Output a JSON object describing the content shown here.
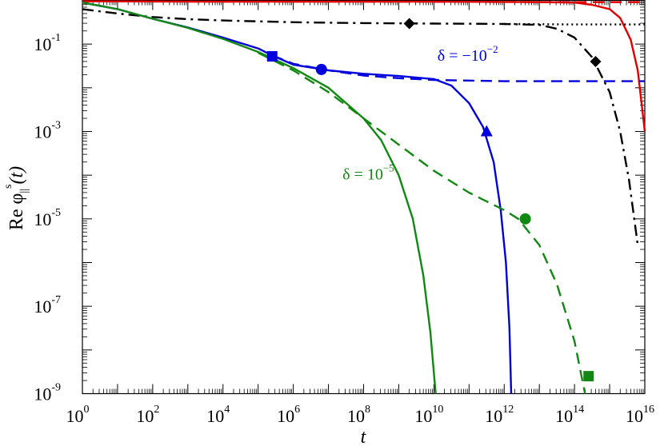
{
  "chart_data": {
    "type": "line",
    "xlabel": "t",
    "ylabel": {
      "prefix": "Re ",
      "symbol": "φ",
      "sub": "||",
      "sup": "s",
      "suffix": "(t)"
    },
    "xscale": "log",
    "yscale": "log",
    "xlim": [
      1,
      1e+16
    ],
    "ylim": [
      1e-09,
      1
    ],
    "x_ticks": [
      {
        "base": "10",
        "exp": "0"
      },
      {
        "base": "10",
        "exp": "2"
      },
      {
        "base": "10",
        "exp": "4"
      },
      {
        "base": "10",
        "exp": "6"
      },
      {
        "base": "10",
        "exp": "8"
      },
      {
        "base": "10",
        "exp": "10"
      },
      {
        "base": "10",
        "exp": "12"
      },
      {
        "base": "10",
        "exp": "14"
      },
      {
        "base": "10",
        "exp": "16"
      }
    ],
    "y_ticks": [
      {
        "base": "10",
        "exp": "-9"
      },
      {
        "base": "10",
        "exp": "-7"
      },
      {
        "base": "10",
        "exp": "-5"
      },
      {
        "base": "10",
        "exp": "-3"
      },
      {
        "base": "10",
        "exp": "-1"
      }
    ],
    "annotations": [
      {
        "text": "δ = −10",
        "exp": "−2",
        "color": "#0000dd",
        "at_log": [
          10.1,
          -1.38
        ]
      },
      {
        "text": "δ = 10",
        "exp": "−5",
        "color": "#118811",
        "at_log": [
          7.4,
          -4.1
        ]
      }
    ],
    "series": [
      {
        "color": "#e00000",
        "style": "solid",
        "points": [
          [
            0,
            -0.02
          ],
          [
            2,
            -0.025
          ],
          [
            4,
            -0.03
          ],
          [
            6,
            -0.03
          ],
          [
            8,
            -0.03
          ],
          [
            10,
            -0.03
          ],
          [
            12,
            -0.035
          ],
          [
            13,
            -0.04
          ],
          [
            14,
            -0.05
          ],
          [
            14.5,
            -0.1
          ],
          [
            15,
            -0.2
          ],
          [
            15.3,
            -0.4
          ],
          [
            15.6,
            -0.9
          ],
          [
            15.8,
            -1.6
          ],
          [
            15.9,
            -2.3
          ],
          [
            16,
            -3
          ]
        ]
      },
      {
        "color": "#e00000",
        "style": "dashed",
        "points": [
          [
            0,
            -0.02
          ],
          [
            4,
            -0.03
          ],
          [
            8,
            -0.03
          ],
          [
            12,
            -0.035
          ],
          [
            14,
            -0.04
          ],
          [
            16,
            -0.04
          ]
        ]
      },
      {
        "color": "#000000",
        "style": "dashdot",
        "points": [
          [
            0,
            -0.2
          ],
          [
            1,
            -0.3
          ],
          [
            2,
            -0.38
          ],
          [
            3,
            -0.43
          ],
          [
            4,
            -0.46
          ],
          [
            5,
            -0.48
          ],
          [
            6,
            -0.5
          ],
          [
            7,
            -0.51
          ],
          [
            8,
            -0.52
          ],
          [
            9,
            -0.525
          ],
          [
            10,
            -0.53
          ],
          [
            11,
            -0.535
          ],
          [
            12,
            -0.54
          ],
          [
            13,
            -0.56
          ],
          [
            13.5,
            -0.65
          ],
          [
            14,
            -0.85
          ],
          [
            14.5,
            -1.3
          ],
          [
            15,
            -2.1
          ],
          [
            15.3,
            -3
          ],
          [
            15.55,
            -4.1
          ],
          [
            15.7,
            -5
          ],
          [
            15.8,
            -5.6
          ]
        ]
      },
      {
        "color": "#000000",
        "style": "dotted",
        "points": [
          [
            12,
            -0.54
          ],
          [
            13,
            -0.545
          ],
          [
            14,
            -0.55
          ],
          [
            15,
            -0.55
          ],
          [
            16,
            -0.55
          ]
        ]
      },
      {
        "color": "#0000dd",
        "style": "solid",
        "points": [
          [
            0,
            -0.05
          ],
          [
            1,
            -0.2
          ],
          [
            2,
            -0.42
          ],
          [
            3,
            -0.62
          ],
          [
            4,
            -0.85
          ],
          [
            5,
            -1.1
          ],
          [
            5.4,
            -1.26
          ],
          [
            6,
            -1.47
          ],
          [
            7,
            -1.6
          ],
          [
            8,
            -1.68
          ],
          [
            9,
            -1.73
          ],
          [
            10,
            -1.8
          ],
          [
            10.5,
            -1.95
          ],
          [
            11,
            -2.35
          ],
          [
            11.4,
            -2.9
          ],
          [
            11.7,
            -3.7
          ],
          [
            11.9,
            -4.8
          ],
          [
            12.05,
            -6
          ],
          [
            12.15,
            -7.5
          ],
          [
            12.2,
            -9
          ]
        ]
      },
      {
        "color": "#0000dd",
        "style": "dashed",
        "points": [
          [
            5.4,
            -1.26
          ],
          [
            6,
            -1.45
          ],
          [
            7,
            -1.6
          ],
          [
            8,
            -1.72
          ],
          [
            9,
            -1.78
          ],
          [
            10,
            -1.82
          ],
          [
            12,
            -1.85
          ],
          [
            14,
            -1.85
          ],
          [
            16,
            -1.85
          ]
        ]
      },
      {
        "color": "#118811",
        "style": "solid",
        "points": [
          [
            0,
            -0.05
          ],
          [
            1,
            -0.2
          ],
          [
            2,
            -0.42
          ],
          [
            3,
            -0.63
          ],
          [
            4,
            -0.88
          ],
          [
            5,
            -1.18
          ],
          [
            6,
            -1.55
          ],
          [
            7,
            -2
          ],
          [
            8,
            -2.7
          ],
          [
            8.5,
            -3.2
          ],
          [
            9,
            -4
          ],
          [
            9.4,
            -5
          ],
          [
            9.7,
            -6.3
          ],
          [
            9.9,
            -7.6
          ],
          [
            10.05,
            -9
          ]
        ]
      },
      {
        "color": "#118811",
        "style": "dashed",
        "points": [
          [
            5,
            -1.2
          ],
          [
            6,
            -1.6
          ],
          [
            7,
            -2.1
          ],
          [
            8,
            -2.7
          ],
          [
            9,
            -3.3
          ],
          [
            10,
            -3.9
          ],
          [
            11,
            -4.4
          ],
          [
            12,
            -4.8
          ],
          [
            12.4,
            -5
          ],
          [
            13,
            -5.6
          ],
          [
            13.5,
            -6.5
          ],
          [
            14,
            -7.8
          ],
          [
            14.3,
            -9
          ]
        ]
      }
    ],
    "markers": [
      {
        "shape": "square",
        "color": "#0000dd",
        "x": 5.4,
        "y": -1.28
      },
      {
        "shape": "circle",
        "color": "#0000dd",
        "x": 6.8,
        "y": -1.58
      },
      {
        "shape": "triangle",
        "color": "#0000dd",
        "x": 11.5,
        "y": -3.0
      },
      {
        "shape": "diamond",
        "color": "#000000",
        "x": 9.3,
        "y": -0.53
      },
      {
        "shape": "diamond",
        "color": "#000000",
        "x": 14.6,
        "y": -1.4
      },
      {
        "shape": "circle",
        "color": "#118811",
        "x": 12.6,
        "y": -5.0
      },
      {
        "shape": "square",
        "color": "#118811",
        "x": 14.4,
        "y": -8.6
      }
    ]
  }
}
